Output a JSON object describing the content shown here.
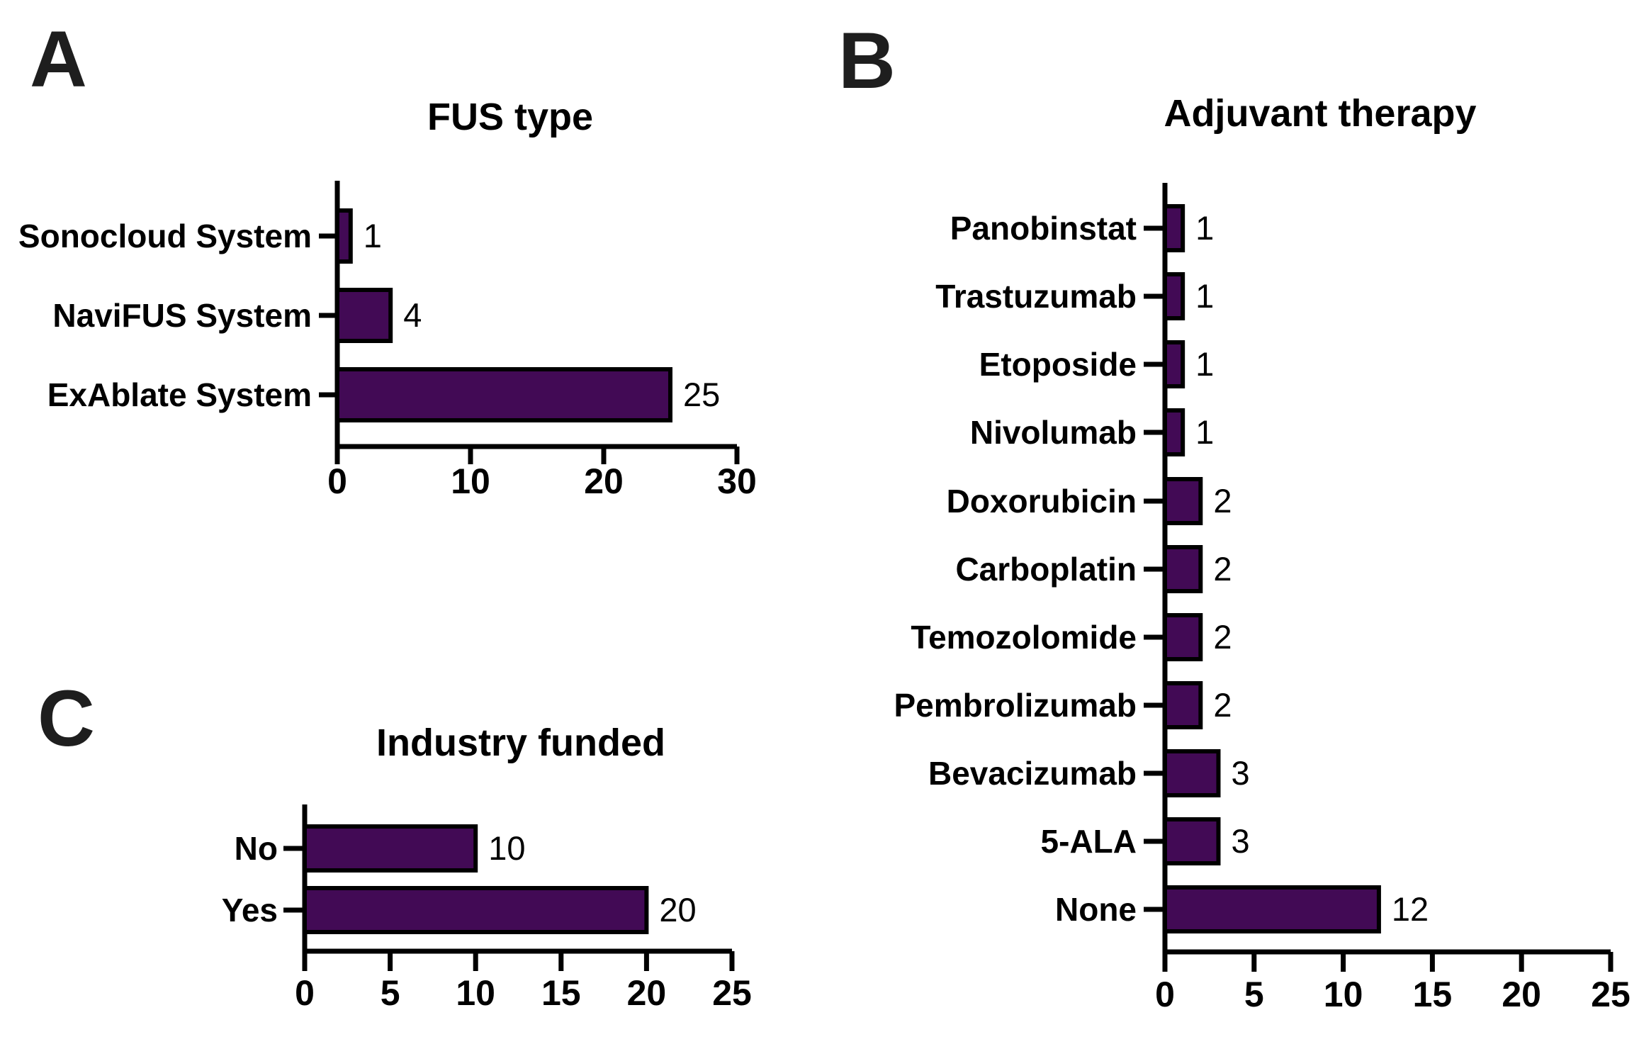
{
  "figure": {
    "background": "#ffffff",
    "description": "Three-panel horizontal bar figure"
  },
  "colors": {
    "bar_fill": "#420a55",
    "bar_stroke": "#000000",
    "axis": "#000000",
    "text": "#000000",
    "panel_letter": "#1e1e1e"
  },
  "chart_data": [
    {
      "panel_letter": "A",
      "type": "bar",
      "orientation": "horizontal",
      "title": "FUS type",
      "categories": [
        "Sonocloud System",
        "NaviFUS System",
        "ExAblate System"
      ],
      "values": [
        1,
        4,
        25
      ],
      "value_labels": [
        "1",
        "4",
        "25"
      ],
      "xlabel": "",
      "ylabel": "",
      "xlim": [
        0,
        30
      ],
      "xticks": [
        0,
        10,
        20,
        30
      ],
      "grid": false,
      "legend": null
    },
    {
      "panel_letter": "B",
      "type": "bar",
      "orientation": "horizontal",
      "title": "Adjuvant therapy",
      "categories": [
        "Panobinstat",
        "Trastuzumab",
        "Etoposide",
        "Nivolumab",
        "Doxorubicin",
        "Carboplatin",
        "Temozolomide",
        "Pembrolizumab",
        "Bevacizumab",
        "5-ALA",
        "None"
      ],
      "values": [
        1,
        1,
        1,
        1,
        2,
        2,
        2,
        2,
        3,
        3,
        12
      ],
      "value_labels": [
        "1",
        "1",
        "1",
        "1",
        "2",
        "2",
        "2",
        "2",
        "3",
        "3",
        "12"
      ],
      "xlabel": "",
      "ylabel": "",
      "xlim": [
        0,
        25
      ],
      "xticks": [
        0,
        5,
        10,
        15,
        20,
        25
      ],
      "grid": false,
      "legend": null
    },
    {
      "panel_letter": "C",
      "type": "bar",
      "orientation": "horizontal",
      "title": "Industry funded",
      "categories": [
        "No",
        "Yes"
      ],
      "values": [
        10,
        20
      ],
      "value_labels": [
        "10",
        "20"
      ],
      "xlabel": "",
      "ylabel": "",
      "xlim": [
        0,
        25
      ],
      "xticks": [
        0,
        5,
        10,
        15,
        20,
        25
      ],
      "grid": false,
      "legend": null
    }
  ]
}
